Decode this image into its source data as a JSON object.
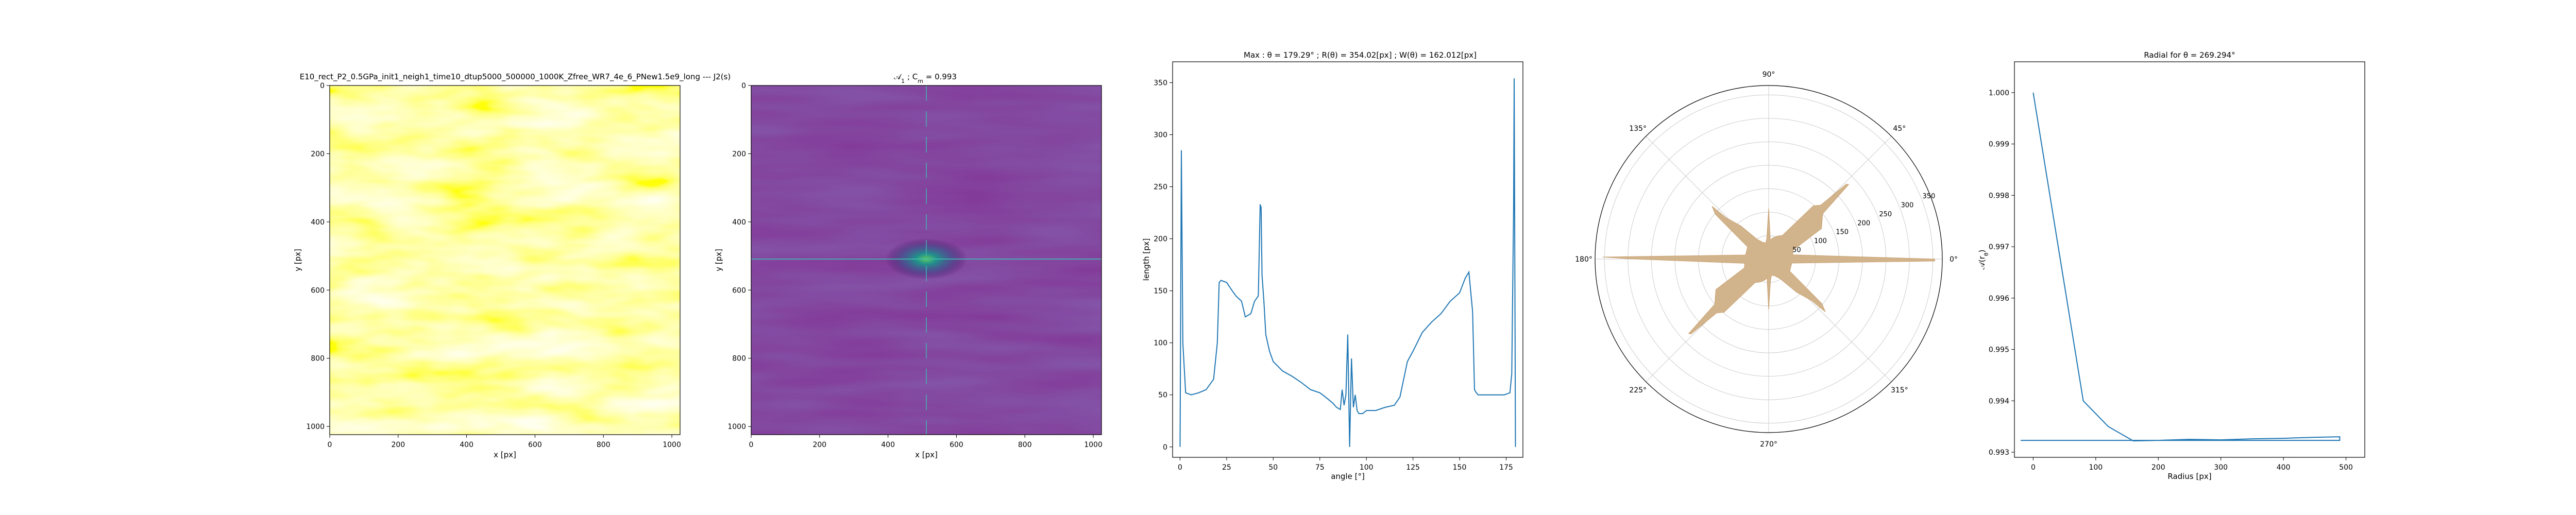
{
  "chart_data": [
    {
      "type": "heatmap",
      "title": "E10_rect_P2_0.5GPa_init1_neigh1_time10_dtup5000_500000_1000K_Zfree_WR7_4e_6_PNew1.5e9_long --- J2(s)",
      "xlabel": "x [px]",
      "ylabel": "y [px]",
      "xlim": [
        0,
        1024
      ],
      "ylim": [
        1024,
        0
      ],
      "xticks": [
        "0",
        "200",
        "400",
        "600",
        "800",
        "1000"
      ],
      "yticks": [
        "0",
        "200",
        "400",
        "600",
        "800",
        "1000"
      ],
      "colormap": "yellow-white"
    },
    {
      "type": "heatmap",
      "title": "$\\mathcal{A}_1$ ; $C_m$ = 0.993",
      "xlabel": "x [px]",
      "ylabel": "y [px]",
      "xlim": [
        0,
        1024
      ],
      "ylim": [
        1024,
        0
      ],
      "xticks": [
        "0",
        "200",
        "400",
        "600",
        "800",
        "1000"
      ],
      "yticks": [
        "0",
        "200",
        "400",
        "600",
        "800",
        "1000"
      ],
      "colormap": "viridis",
      "peak": [
        512,
        512
      ]
    },
    {
      "type": "line",
      "title": "Max : $\\theta$ = 179.29° ; $R(\\theta)$ = 354.02[px] ; $W(\\theta)$ = 162.012[px]",
      "xlabel": "angle [°]",
      "ylabel": "length [px]",
      "xlim": [
        -4,
        184
      ],
      "ylim": [
        -10,
        370
      ],
      "xticks": [
        0,
        25,
        50,
        75,
        100,
        125,
        150,
        175
      ],
      "yticks": [
        0,
        50,
        100,
        150,
        200,
        250,
        300,
        350
      ],
      "color": "#1f77b4",
      "x": [
        0,
        0.7,
        1.5,
        3,
        6,
        10,
        14,
        18,
        20,
        21,
        22,
        25,
        28,
        30,
        33,
        35,
        38,
        40,
        42,
        43,
        43.5,
        44,
        45,
        46,
        47,
        48,
        50,
        55,
        60,
        65,
        70,
        75,
        78,
        80,
        82,
        84,
        86,
        87,
        88,
        89,
        90,
        91,
        92,
        93,
        94,
        95,
        96,
        98,
        100,
        105,
        110,
        115,
        118,
        120,
        122,
        125,
        130,
        135,
        140,
        145,
        150,
        153,
        155,
        157,
        158,
        159,
        160,
        163,
        166,
        170,
        174,
        177,
        178,
        179,
        179.29,
        180
      ],
      "y": [
        0,
        285,
        100,
        52,
        50,
        52,
        55,
        65,
        100,
        158,
        160,
        158,
        150,
        145,
        140,
        125,
        128,
        140,
        145,
        233,
        230,
        165,
        140,
        108,
        100,
        92,
        82,
        73,
        68,
        62,
        55,
        52,
        48,
        45,
        42,
        38,
        36,
        55,
        40,
        50,
        108,
        0,
        85,
        38,
        50,
        35,
        32,
        32,
        35,
        35,
        38,
        40,
        48,
        65,
        82,
        92,
        110,
        120,
        128,
        140,
        148,
        162,
        168,
        130,
        55,
        52,
        50,
        50,
        50,
        50,
        50,
        52,
        70,
        230,
        354,
        0
      ]
    },
    {
      "type": "area",
      "subtype": "polar",
      "angle_ticks": [
        "0°",
        "45°",
        "90°",
        "135°",
        "180°",
        "225°",
        "270°",
        "315°"
      ],
      "radial_ticks": [
        "50",
        "100",
        "150",
        "200",
        "250",
        "300",
        "350"
      ],
      "rlim": [
        0,
        370
      ],
      "fill_color": "#d2b48c",
      "line_color": "#f4a460",
      "theta_deg": [
        0,
        10,
        20,
        30,
        40,
        43,
        44,
        46,
        50,
        60,
        70,
        80,
        85,
        90,
        95,
        100,
        110,
        120,
        130,
        136,
        137,
        140,
        150,
        160,
        170,
        179.3,
        180,
        190,
        200,
        210,
        220,
        223,
        224,
        226,
        230,
        240,
        250,
        260,
        265,
        270,
        275,
        280,
        290,
        300,
        310,
        316,
        317,
        320,
        330,
        340,
        350,
        359.3
      ],
      "r": [
        354,
        52,
        55,
        130,
        150,
        233,
        230,
        160,
        148,
        58,
        52,
        45,
        40,
        108,
        45,
        35,
        38,
        48,
        92,
        128,
        165,
        148,
        52,
        50,
        50,
        354,
        285,
        52,
        55,
        130,
        150,
        233,
        230,
        160,
        148,
        58,
        52,
        45,
        40,
        108,
        45,
        35,
        38,
        48,
        92,
        128,
        165,
        148,
        52,
        50,
        50,
        354
      ]
    },
    {
      "type": "line",
      "title": "Radial for $\\theta$ = 269.294°",
      "xlabel": "Radius [px]",
      "ylabel": "$\\mathcal{A}(r_\\theta)$",
      "xlim": [
        -30,
        530
      ],
      "ylim": [
        0.9929,
        1.0006
      ],
      "xticks": [
        0,
        100,
        200,
        300,
        400,
        500
      ],
      "yticks": [
        "0.993",
        "0.994",
        "0.995",
        "0.996",
        "0.997",
        "0.998",
        "0.999",
        "1.000"
      ],
      "color": "#1f77b4",
      "x": [
        0,
        80,
        120,
        160,
        200,
        250,
        300,
        350,
        400,
        450,
        490,
        490,
        450,
        400,
        300,
        200,
        100,
        0,
        -20
      ],
      "y": [
        1.0,
        0.994,
        0.9935,
        0.99322,
        0.99323,
        0.99325,
        0.99324,
        0.99326,
        0.99327,
        0.99329,
        0.9933,
        0.99323,
        0.99323,
        0.99323,
        0.99323,
        0.99323,
        0.99323,
        0.99323,
        0.99323
      ]
    }
  ]
}
